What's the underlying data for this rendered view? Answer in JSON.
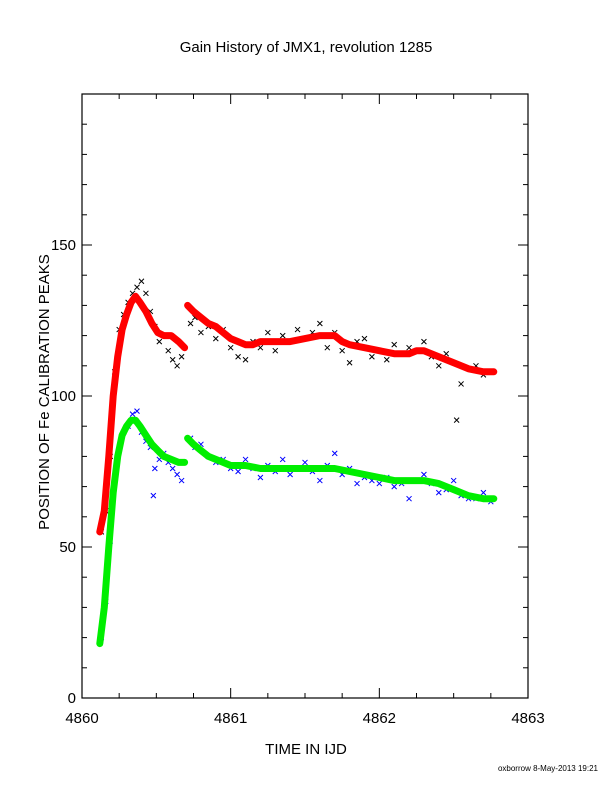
{
  "chart_data": {
    "type": "scatter",
    "title": "Gain History of JMX1, revolution 1285",
    "xlabel": "TIME IN IJD",
    "ylabel": "POSITION OF Fe CALIBRATION PEAKS",
    "xlim": [
      4860,
      4863
    ],
    "ylim": [
      0,
      200
    ],
    "x_major_ticks": [
      4860,
      4861,
      4862,
      4863
    ],
    "y_major_ticks": [
      0,
      50,
      100,
      150
    ],
    "y_ticks_labeled": [
      "0",
      "50",
      "100",
      "150"
    ],
    "x_ticks_labeled": [
      "4860",
      "4861",
      "4862",
      "4863"
    ],
    "grid": false,
    "series": [
      {
        "color": "#000000",
        "marker": "x",
        "points": [
          [
            4860.13,
            55
          ],
          [
            4860.16,
            62
          ],
          [
            4860.19,
            80
          ],
          [
            4860.22,
            108
          ],
          [
            4860.25,
            122
          ],
          [
            4860.28,
            127
          ],
          [
            4860.31,
            131
          ],
          [
            4860.34,
            134
          ],
          [
            4860.37,
            136
          ],
          [
            4860.4,
            138
          ],
          [
            4860.43,
            134
          ],
          [
            4860.46,
            128
          ],
          [
            4860.49,
            123
          ],
          [
            4860.52,
            118
          ],
          [
            4860.55,
            120
          ],
          [
            4860.58,
            115
          ],
          [
            4860.61,
            112
          ],
          [
            4860.64,
            110
          ],
          [
            4860.67,
            113
          ],
          [
            4860.73,
            124
          ],
          [
            4860.76,
            126
          ],
          [
            4860.8,
            121
          ],
          [
            4860.85,
            123
          ],
          [
            4860.9,
            119
          ],
          [
            4860.95,
            122
          ],
          [
            4861.0,
            116
          ],
          [
            4861.05,
            113
          ],
          [
            4861.1,
            112
          ],
          [
            4861.15,
            118
          ],
          [
            4861.2,
            116
          ],
          [
            4861.25,
            121
          ],
          [
            4861.3,
            115
          ],
          [
            4861.35,
            120
          ],
          [
            4861.4,
            118
          ],
          [
            4861.45,
            122
          ],
          [
            4861.5,
            119
          ],
          [
            4861.55,
            121
          ],
          [
            4861.6,
            124
          ],
          [
            4861.65,
            116
          ],
          [
            4861.7,
            121
          ],
          [
            4861.75,
            115
          ],
          [
            4861.8,
            111
          ],
          [
            4861.85,
            118
          ],
          [
            4861.9,
            119
          ],
          [
            4861.95,
            113
          ],
          [
            4862.0,
            115
          ],
          [
            4862.05,
            112
          ],
          [
            4862.1,
            117
          ],
          [
            4862.15,
            114
          ],
          [
            4862.2,
            116
          ],
          [
            4862.25,
            115
          ],
          [
            4862.3,
            118
          ],
          [
            4862.35,
            113
          ],
          [
            4862.4,
            110
          ],
          [
            4862.45,
            114
          ],
          [
            4862.52,
            92
          ],
          [
            4862.55,
            104
          ],
          [
            4862.6,
            109
          ],
          [
            4862.65,
            110
          ],
          [
            4862.7,
            107
          ],
          [
            4862.75,
            108
          ]
        ]
      },
      {
        "color": "#0000ff",
        "marker": "x",
        "points": [
          [
            4860.13,
            20
          ],
          [
            4860.16,
            32
          ],
          [
            4860.19,
            52
          ],
          [
            4860.22,
            72
          ],
          [
            4860.25,
            82
          ],
          [
            4860.28,
            88
          ],
          [
            4860.31,
            90
          ],
          [
            4860.34,
            94
          ],
          [
            4860.37,
            95
          ],
          [
            4860.4,
            88
          ],
          [
            4860.43,
            85
          ],
          [
            4860.46,
            83
          ],
          [
            4860.49,
            76
          ],
          [
            4860.52,
            79
          ],
          [
            4860.55,
            81
          ],
          [
            4860.58,
            78
          ],
          [
            4860.61,
            76
          ],
          [
            4860.64,
            74
          ],
          [
            4860.67,
            72
          ],
          [
            4860.73,
            86
          ],
          [
            4860.76,
            83
          ],
          [
            4860.8,
            84
          ],
          [
            4860.85,
            80
          ],
          [
            4860.9,
            78
          ],
          [
            4860.95,
            79
          ],
          [
            4861.0,
            76
          ],
          [
            4861.05,
            75
          ],
          [
            4861.1,
            79
          ],
          [
            4861.15,
            76
          ],
          [
            4861.2,
            73
          ],
          [
            4861.25,
            77
          ],
          [
            4861.3,
            75
          ],
          [
            4861.35,
            79
          ],
          [
            4861.4,
            74
          ],
          [
            4861.45,
            76
          ],
          [
            4861.5,
            78
          ],
          [
            4861.55,
            75
          ],
          [
            4861.6,
            72
          ],
          [
            4861.65,
            77
          ],
          [
            4861.7,
            81
          ],
          [
            4861.75,
            74
          ],
          [
            4861.8,
            76
          ],
          [
            4861.85,
            71
          ],
          [
            4861.9,
            73
          ],
          [
            4861.95,
            72
          ],
          [
            4862.0,
            71
          ],
          [
            4862.05,
            73
          ],
          [
            4862.1,
            70
          ],
          [
            4862.15,
            71
          ],
          [
            4862.2,
            66
          ],
          [
            4862.25,
            72
          ],
          [
            4862.3,
            74
          ],
          [
            4862.35,
            71
          ],
          [
            4862.4,
            68
          ],
          [
            4862.45,
            69
          ],
          [
            4862.5,
            72
          ],
          [
            4862.55,
            67
          ],
          [
            4862.6,
            66
          ],
          [
            4862.65,
            66
          ],
          [
            4862.7,
            68
          ],
          [
            4862.75,
            65
          ],
          [
            4860.48,
            67
          ]
        ]
      },
      {
        "color": "#ff0000",
        "marker": "fit",
        "segments": [
          [
            [
              4860.12,
              55
            ],
            [
              4860.15,
              62
            ],
            [
              4860.18,
              80
            ],
            [
              4860.21,
              100
            ],
            [
              4860.24,
              113
            ],
            [
              4860.27,
              122
            ],
            [
              4860.3,
              127
            ],
            [
              4860.33,
              131
            ],
            [
              4860.36,
              133
            ],
            [
              4860.39,
              131
            ],
            [
              4860.43,
              128
            ],
            [
              4860.47,
              124
            ],
            [
              4860.51,
              121
            ],
            [
              4860.55,
              120
            ],
            [
              4860.6,
              120
            ],
            [
              4860.65,
              118
            ],
            [
              4860.69,
              116
            ]
          ],
          [
            [
              4860.71,
              130
            ],
            [
              4860.75,
              128
            ],
            [
              4860.8,
              126
            ],
            [
              4860.85,
              124
            ],
            [
              4860.9,
              123
            ],
            [
              4860.95,
              121
            ],
            [
              4861.0,
              119
            ],
            [
              4861.05,
              118
            ],
            [
              4861.1,
              117
            ],
            [
              4861.15,
              117
            ],
            [
              4861.2,
              118
            ],
            [
              4861.3,
              118
            ],
            [
              4861.4,
              118
            ],
            [
              4861.5,
              119
            ],
            [
              4861.6,
              120
            ],
            [
              4861.7,
              120
            ],
            [
              4861.75,
              118
            ],
            [
              4861.8,
              117
            ],
            [
              4861.9,
              116
            ],
            [
              4862.0,
              115
            ],
            [
              4862.1,
              114
            ],
            [
              4862.2,
              114
            ],
            [
              4862.25,
              115
            ],
            [
              4862.3,
              115
            ],
            [
              4862.4,
              113
            ],
            [
              4862.5,
              111
            ],
            [
              4862.6,
              109
            ],
            [
              4862.7,
              108
            ],
            [
              4862.77,
              108
            ]
          ]
        ]
      },
      {
        "color": "#00ee00",
        "marker": "fit",
        "segments": [
          [
            [
              4860.12,
              18
            ],
            [
              4860.15,
              30
            ],
            [
              4860.18,
              50
            ],
            [
              4860.21,
              68
            ],
            [
              4860.24,
              80
            ],
            [
              4860.27,
              87
            ],
            [
              4860.3,
              90
            ],
            [
              4860.33,
              92
            ],
            [
              4860.36,
              92
            ],
            [
              4860.39,
              90
            ],
            [
              4860.43,
              87
            ],
            [
              4860.47,
              84
            ],
            [
              4860.51,
              82
            ],
            [
              4860.55,
              80
            ],
            [
              4860.6,
              79
            ],
            [
              4860.65,
              78
            ],
            [
              4860.69,
              78
            ]
          ],
          [
            [
              4860.71,
              86
            ],
            [
              4860.75,
              84
            ],
            [
              4860.8,
              82
            ],
            [
              4860.85,
              80
            ],
            [
              4860.9,
              79
            ],
            [
              4860.95,
              78
            ],
            [
              4861.0,
              77
            ],
            [
              4861.1,
              77
            ],
            [
              4861.2,
              76
            ],
            [
              4861.3,
              76
            ],
            [
              4861.4,
              76
            ],
            [
              4861.5,
              76
            ],
            [
              4861.6,
              76
            ],
            [
              4861.7,
              76
            ],
            [
              4861.8,
              75
            ],
            [
              4861.9,
              74
            ],
            [
              4862.0,
              73
            ],
            [
              4862.1,
              72
            ],
            [
              4862.2,
              72
            ],
            [
              4862.3,
              72
            ],
            [
              4862.4,
              71
            ],
            [
              4862.5,
              69
            ],
            [
              4862.6,
              67
            ],
            [
              4862.7,
              66
            ],
            [
              4862.77,
              66
            ]
          ]
        ]
      }
    ]
  },
  "footer": "oxborrow  8-May-2013 19:21"
}
